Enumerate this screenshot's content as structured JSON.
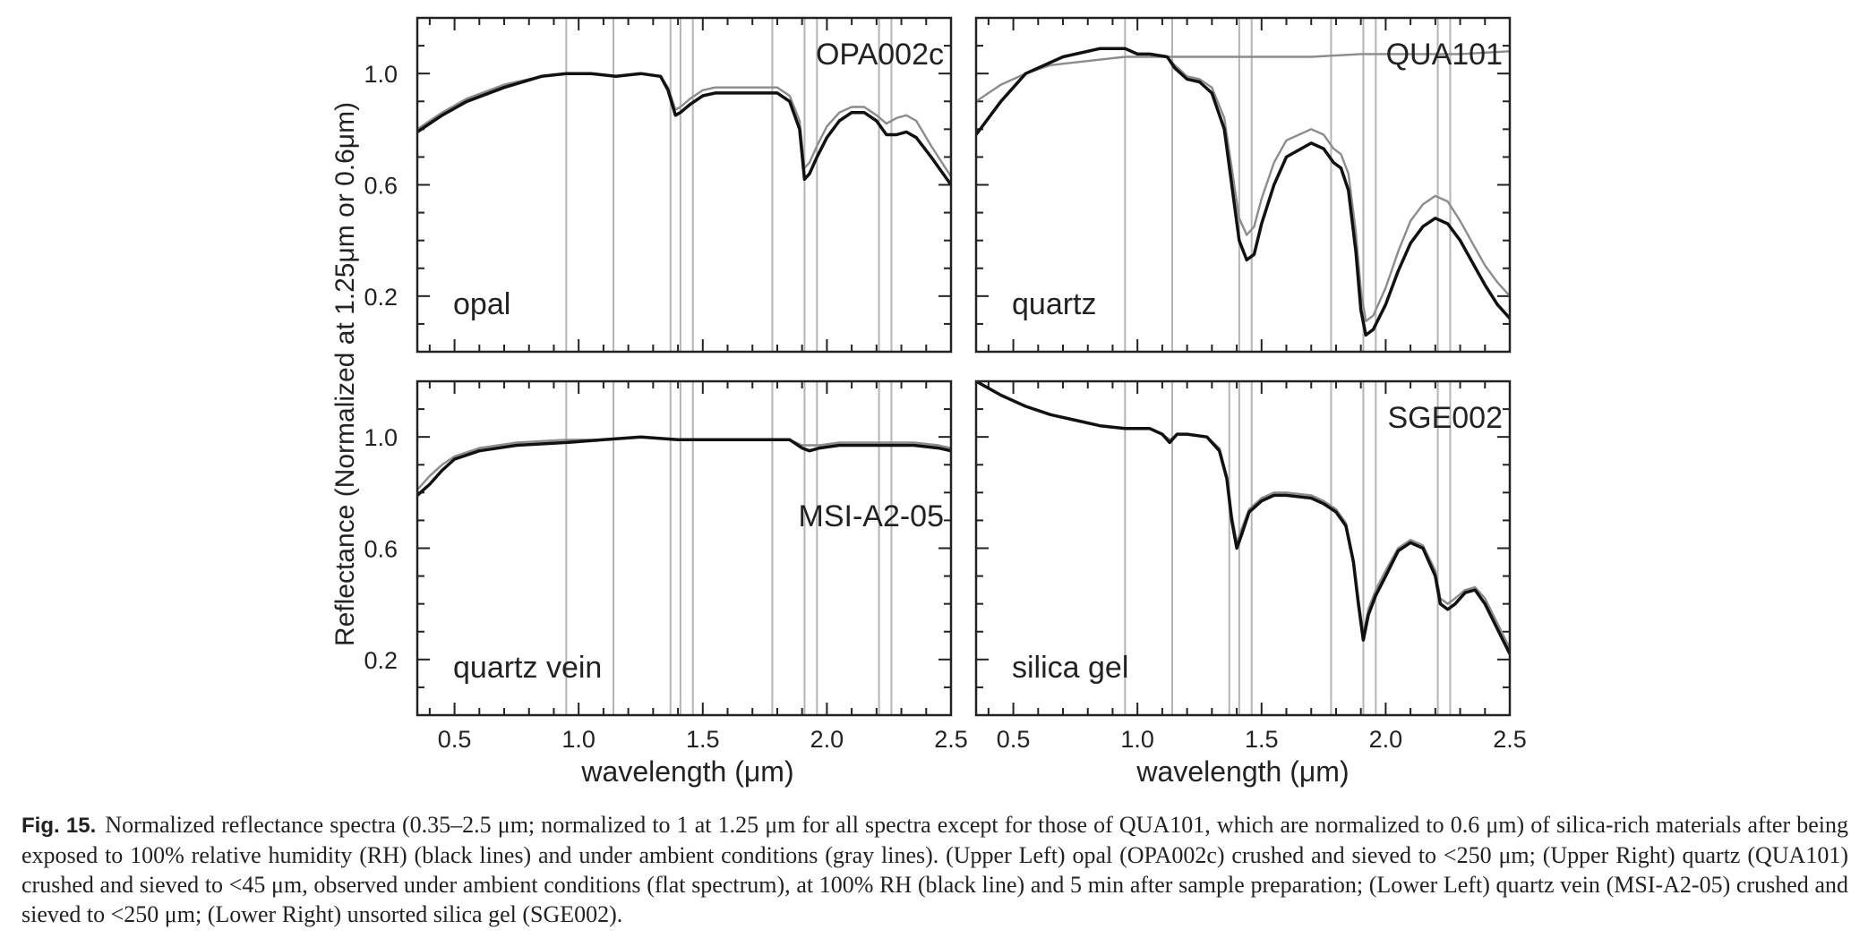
{
  "figure": {
    "ylabel": "Reflectance (Normalized at 1.25μm or 0.6μm)",
    "xlabel": "wavelength (μm)",
    "colors": {
      "hydrated": "#111111",
      "ambient": "#8c8c8c",
      "reference_lines": "#b5b5b5",
      "frame": "#222222"
    }
  },
  "chart_data": [
    {
      "type": "line",
      "panel": "upper-left",
      "sample_id": "OPA002c",
      "material": "opal",
      "xlim": [
        0.35,
        2.5
      ],
      "ylim": [
        0.0,
        1.2
      ],
      "xticks": [
        0.5,
        1.0,
        1.5,
        2.0,
        2.5
      ],
      "xticklabels": [
        "0.5",
        "1.0",
        "1.5",
        "2.0",
        "2.5"
      ],
      "yticks": [
        0.2,
        0.6,
        1.0
      ],
      "yticklabels": [
        "0.2",
        "0.6",
        "1.0"
      ],
      "reference_lines": [
        0.95,
        1.14,
        1.37,
        1.41,
        1.46,
        1.78,
        1.91,
        1.96,
        2.21,
        2.26
      ],
      "series": [
        {
          "role": "hydrated",
          "x": [
            0.35,
            0.45,
            0.55,
            0.7,
            0.85,
            0.95,
            1.05,
            1.15,
            1.25,
            1.33,
            1.36,
            1.39,
            1.41,
            1.45,
            1.5,
            1.55,
            1.65,
            1.75,
            1.8,
            1.85,
            1.89,
            1.91,
            1.93,
            1.96,
            2.0,
            2.05,
            2.1,
            2.15,
            2.2,
            2.24,
            2.28,
            2.32,
            2.36,
            2.42,
            2.5
          ],
          "y": [
            0.79,
            0.85,
            0.9,
            0.95,
            0.99,
            1.0,
            1.0,
            0.99,
            1.0,
            0.99,
            0.94,
            0.85,
            0.86,
            0.89,
            0.92,
            0.93,
            0.93,
            0.93,
            0.93,
            0.9,
            0.8,
            0.62,
            0.64,
            0.7,
            0.77,
            0.83,
            0.86,
            0.86,
            0.83,
            0.78,
            0.78,
            0.79,
            0.77,
            0.7,
            0.6
          ]
        },
        {
          "role": "ambient",
          "x": [
            0.35,
            0.45,
            0.55,
            0.7,
            0.85,
            0.95,
            1.05,
            1.15,
            1.25,
            1.33,
            1.36,
            1.39,
            1.41,
            1.45,
            1.5,
            1.55,
            1.65,
            1.75,
            1.8,
            1.85,
            1.89,
            1.91,
            1.93,
            1.96,
            2.0,
            2.05,
            2.1,
            2.15,
            2.2,
            2.24,
            2.28,
            2.32,
            2.36,
            2.42,
            2.5
          ],
          "y": [
            0.8,
            0.86,
            0.91,
            0.96,
            0.99,
            1.0,
            1.0,
            0.99,
            1.0,
            0.99,
            0.95,
            0.87,
            0.88,
            0.91,
            0.94,
            0.95,
            0.95,
            0.95,
            0.95,
            0.92,
            0.83,
            0.66,
            0.68,
            0.74,
            0.81,
            0.86,
            0.88,
            0.88,
            0.85,
            0.82,
            0.84,
            0.85,
            0.83,
            0.74,
            0.63
          ]
        }
      ]
    },
    {
      "type": "line",
      "panel": "upper-right",
      "sample_id": "QUA101",
      "material": "quartz",
      "xlim": [
        0.35,
        2.5
      ],
      "ylim": [
        0.0,
        1.2
      ],
      "xticks": [
        0.5,
        1.0,
        1.5,
        2.0,
        2.5
      ],
      "xticklabels": [
        "0.5",
        "1.0",
        "1.5",
        "2.0",
        "2.5"
      ],
      "yticks": [
        0.2,
        0.6,
        1.0
      ],
      "yticklabels": [
        "0.2",
        "0.6",
        "1.0"
      ],
      "reference_lines": [
        0.95,
        1.14,
        1.41,
        1.46,
        1.78,
        1.91,
        1.96,
        2.21,
        2.26
      ],
      "series": [
        {
          "role": "hydrated",
          "x": [
            0.35,
            0.45,
            0.55,
            0.7,
            0.85,
            0.95,
            1.0,
            1.05,
            1.12,
            1.15,
            1.2,
            1.25,
            1.3,
            1.35,
            1.38,
            1.41,
            1.44,
            1.47,
            1.5,
            1.55,
            1.6,
            1.7,
            1.75,
            1.79,
            1.82,
            1.85,
            1.88,
            1.9,
            1.92,
            1.95,
            2.0,
            2.05,
            2.1,
            2.15,
            2.2,
            2.25,
            2.3,
            2.35,
            2.4,
            2.45,
            2.5
          ],
          "y": [
            0.78,
            0.9,
            1.0,
            1.06,
            1.09,
            1.09,
            1.07,
            1.07,
            1.06,
            1.02,
            0.98,
            0.97,
            0.93,
            0.8,
            0.6,
            0.4,
            0.33,
            0.35,
            0.46,
            0.6,
            0.7,
            0.75,
            0.73,
            0.68,
            0.66,
            0.58,
            0.36,
            0.15,
            0.06,
            0.08,
            0.17,
            0.29,
            0.39,
            0.45,
            0.48,
            0.46,
            0.4,
            0.32,
            0.24,
            0.17,
            0.12
          ]
        },
        {
          "role": "ambient",
          "x": [
            0.35,
            0.45,
            0.55,
            0.7,
            0.85,
            0.95,
            1.0,
            1.05,
            1.12,
            1.15,
            1.2,
            1.25,
            1.3,
            1.35,
            1.38,
            1.41,
            1.44,
            1.47,
            1.5,
            1.55,
            1.6,
            1.7,
            1.75,
            1.79,
            1.82,
            1.85,
            1.88,
            1.9,
            1.92,
            1.95,
            2.0,
            2.05,
            2.1,
            2.15,
            2.2,
            2.25,
            2.3,
            2.35,
            2.4,
            2.45,
            2.5
          ],
          "y": [
            0.78,
            0.9,
            1.0,
            1.06,
            1.09,
            1.09,
            1.07,
            1.07,
            1.06,
            1.03,
            0.99,
            0.98,
            0.95,
            0.84,
            0.66,
            0.48,
            0.42,
            0.45,
            0.55,
            0.68,
            0.76,
            0.8,
            0.78,
            0.73,
            0.71,
            0.64,
            0.43,
            0.22,
            0.11,
            0.13,
            0.23,
            0.36,
            0.47,
            0.53,
            0.56,
            0.54,
            0.47,
            0.39,
            0.31,
            0.25,
            0.2
          ]
        },
        {
          "role": "ambient-flat",
          "x": [
            0.35,
            0.45,
            0.55,
            0.65,
            0.75,
            0.85,
            0.95,
            1.1,
            1.3,
            1.5,
            1.7,
            1.9,
            2.1,
            2.3,
            2.5
          ],
          "y": [
            0.9,
            0.96,
            1.0,
            1.03,
            1.04,
            1.05,
            1.06,
            1.06,
            1.06,
            1.06,
            1.06,
            1.07,
            1.07,
            1.07,
            1.08
          ]
        }
      ]
    },
    {
      "type": "line",
      "panel": "lower-left",
      "sample_id": "MSI-A2-05",
      "material": "quartz vein",
      "xlim": [
        0.35,
        2.5
      ],
      "ylim": [
        0.0,
        1.2
      ],
      "xticks": [
        0.5,
        1.0,
        1.5,
        2.0,
        2.5
      ],
      "xticklabels": [
        "0.5",
        "1.0",
        "1.5",
        "2.0",
        "2.5"
      ],
      "yticks": [
        0.2,
        0.6,
        1.0
      ],
      "yticklabels": [
        "0.2",
        "0.6",
        "1.0"
      ],
      "reference_lines": [
        0.95,
        1.14,
        1.37,
        1.41,
        1.46,
        1.78,
        1.91,
        1.96,
        2.21,
        2.26
      ],
      "series": [
        {
          "role": "hydrated",
          "x": [
            0.35,
            0.4,
            0.45,
            0.5,
            0.6,
            0.75,
            0.95,
            1.1,
            1.25,
            1.4,
            1.6,
            1.85,
            1.9,
            1.93,
            1.97,
            2.05,
            2.2,
            2.35,
            2.45,
            2.5
          ],
          "y": [
            0.79,
            0.83,
            0.88,
            0.92,
            0.95,
            0.97,
            0.98,
            0.99,
            1.0,
            0.99,
            0.99,
            0.99,
            0.96,
            0.95,
            0.96,
            0.97,
            0.97,
            0.97,
            0.96,
            0.95
          ]
        },
        {
          "role": "ambient",
          "x": [
            0.35,
            0.4,
            0.45,
            0.5,
            0.6,
            0.75,
            0.95,
            1.1,
            1.25,
            1.4,
            1.6,
            1.85,
            1.9,
            1.93,
            1.97,
            2.05,
            2.2,
            2.35,
            2.45,
            2.5
          ],
          "y": [
            0.81,
            0.86,
            0.9,
            0.93,
            0.96,
            0.98,
            0.99,
            0.99,
            1.0,
            0.99,
            0.99,
            0.99,
            0.97,
            0.97,
            0.97,
            0.98,
            0.98,
            0.98,
            0.97,
            0.96
          ]
        }
      ]
    },
    {
      "type": "line",
      "panel": "lower-right",
      "sample_id": "SGE002",
      "material": "silica gel",
      "xlim": [
        0.35,
        2.5
      ],
      "ylim": [
        0.0,
        1.2
      ],
      "xticks": [
        0.5,
        1.0,
        1.5,
        2.0,
        2.5
      ],
      "xticklabels": [
        "0.5",
        "1.0",
        "1.5",
        "2.0",
        "2.5"
      ],
      "yticks": [
        0.2,
        0.6,
        1.0
      ],
      "yticklabels": [
        "0.2",
        "0.6",
        "1.0"
      ],
      "reference_lines": [
        0.95,
        1.14,
        1.37,
        1.41,
        1.46,
        1.78,
        1.91,
        1.96,
        2.21,
        2.26
      ],
      "series": [
        {
          "role": "hydrated",
          "x": [
            0.35,
            0.45,
            0.55,
            0.65,
            0.75,
            0.85,
            0.95,
            1.0,
            1.05,
            1.1,
            1.13,
            1.16,
            1.2,
            1.28,
            1.33,
            1.36,
            1.38,
            1.4,
            1.42,
            1.45,
            1.5,
            1.55,
            1.6,
            1.7,
            1.75,
            1.8,
            1.84,
            1.87,
            1.89,
            1.91,
            1.93,
            1.96,
            2.0,
            2.05,
            2.1,
            2.15,
            2.2,
            2.22,
            2.25,
            2.28,
            2.32,
            2.36,
            2.4,
            2.45,
            2.5
          ],
          "y": [
            1.2,
            1.15,
            1.11,
            1.08,
            1.06,
            1.04,
            1.03,
            1.03,
            1.03,
            1.01,
            0.98,
            1.01,
            1.01,
            1.0,
            0.95,
            0.85,
            0.7,
            0.6,
            0.65,
            0.73,
            0.77,
            0.79,
            0.79,
            0.78,
            0.76,
            0.73,
            0.68,
            0.55,
            0.4,
            0.27,
            0.36,
            0.43,
            0.5,
            0.59,
            0.62,
            0.6,
            0.5,
            0.4,
            0.38,
            0.4,
            0.44,
            0.45,
            0.4,
            0.31,
            0.22
          ]
        },
        {
          "role": "ambient",
          "x": [
            0.35,
            0.45,
            0.55,
            0.65,
            0.75,
            0.85,
            0.95,
            1.0,
            1.05,
            1.1,
            1.13,
            1.16,
            1.2,
            1.28,
            1.33,
            1.36,
            1.38,
            1.4,
            1.42,
            1.45,
            1.5,
            1.55,
            1.6,
            1.7,
            1.75,
            1.8,
            1.84,
            1.87,
            1.89,
            1.91,
            1.93,
            1.96,
            2.0,
            2.05,
            2.1,
            2.15,
            2.2,
            2.22,
            2.25,
            2.28,
            2.32,
            2.36,
            2.4,
            2.45,
            2.5
          ],
          "y": [
            1.2,
            1.15,
            1.11,
            1.08,
            1.06,
            1.04,
            1.03,
            1.03,
            1.03,
            1.01,
            0.99,
            1.01,
            1.01,
            1.0,
            0.96,
            0.86,
            0.72,
            0.62,
            0.67,
            0.74,
            0.78,
            0.8,
            0.8,
            0.79,
            0.77,
            0.74,
            0.69,
            0.56,
            0.42,
            0.29,
            0.38,
            0.45,
            0.52,
            0.6,
            0.63,
            0.61,
            0.52,
            0.42,
            0.4,
            0.42,
            0.45,
            0.46,
            0.42,
            0.33,
            0.24
          ]
        }
      ]
    }
  ],
  "caption": {
    "label": "Fig. 15.",
    "text": "Normalized reflectance spectra (0.35–2.5 μm; normalized to 1 at 1.25 μm for all spectra except for those of QUA101, which are normalized to 0.6 μm) of silica-rich materials after being exposed to 100% relative humidity (RH) (black lines) and under ambient conditions (gray lines). (Upper Left) opal (OPA002c) crushed and sieved to <250 μm; (Upper Right) quartz (QUA101) crushed and sieved to <45 μm, observed under ambient conditions (flat spectrum), at 100% RH (black line) and 5 min after sample preparation; (Lower Left) quartz vein (MSI-A2-05) crushed and sieved to <250 μm; (Lower Right) unsorted silica gel (SGE002)."
  }
}
